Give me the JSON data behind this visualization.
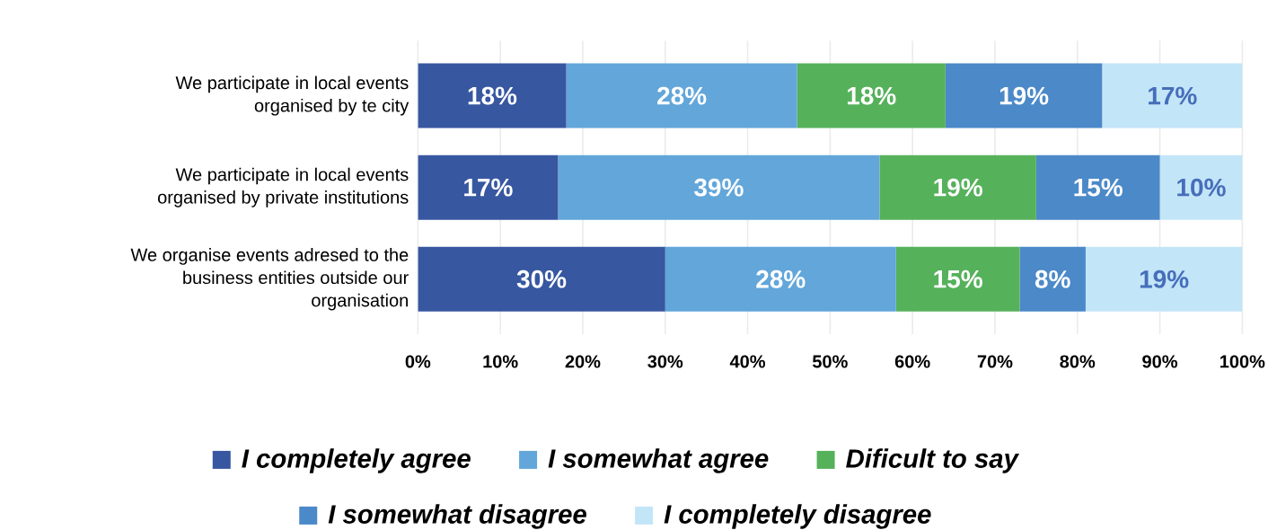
{
  "chart_data": {
    "type": "bar",
    "orientation": "horizontal",
    "stacked": true,
    "categories": [
      "We participate in local events organised by te city",
      "We participate in local events organised by private institutions",
      "We organise events adresed to the business entities outside our organisation"
    ],
    "series": [
      {
        "name": "I completely agree",
        "color": "#3857a1",
        "values": [
          18,
          17,
          30
        ],
        "value_labels": [
          "18%",
          "17%",
          "30%"
        ]
      },
      {
        "name": "I somewhat agree",
        "color": "#62a6da",
        "values": [
          28,
          39,
          28
        ],
        "value_labels": [
          "28%",
          "39%",
          "28%"
        ]
      },
      {
        "name": "Dificult to say",
        "color": "#56b15b",
        "values": [
          18,
          19,
          15
        ],
        "value_labels": [
          "18%",
          "19%",
          "15%"
        ]
      },
      {
        "name": "I somewhat disagree",
        "color": "#4b89c8",
        "values": [
          19,
          15,
          8
        ],
        "value_labels": [
          "19%",
          "15%",
          "8%"
        ]
      },
      {
        "name": "I completely disagree",
        "color": "#c3e5f8",
        "values": [
          17,
          10,
          19
        ],
        "value_labels": [
          "17%",
          "10%",
          "19%"
        ]
      }
    ],
    "xlim": [
      0,
      100
    ],
    "xticks": [
      {
        "value": 0,
        "label": "0%"
      },
      {
        "value": 10,
        "label": "10%"
      },
      {
        "value": 20,
        "label": "20%"
      },
      {
        "value": 30,
        "label": "30%"
      },
      {
        "value": 40,
        "label": "40%"
      },
      {
        "value": 50,
        "label": "50%"
      },
      {
        "value": 60,
        "label": "60%"
      },
      {
        "value": 70,
        "label": "70%"
      },
      {
        "value": 80,
        "label": "80%"
      },
      {
        "value": 90,
        "label": "90%"
      },
      {
        "value": 100,
        "label": "100%"
      }
    ],
    "grid": "x",
    "legend": "bottom"
  }
}
